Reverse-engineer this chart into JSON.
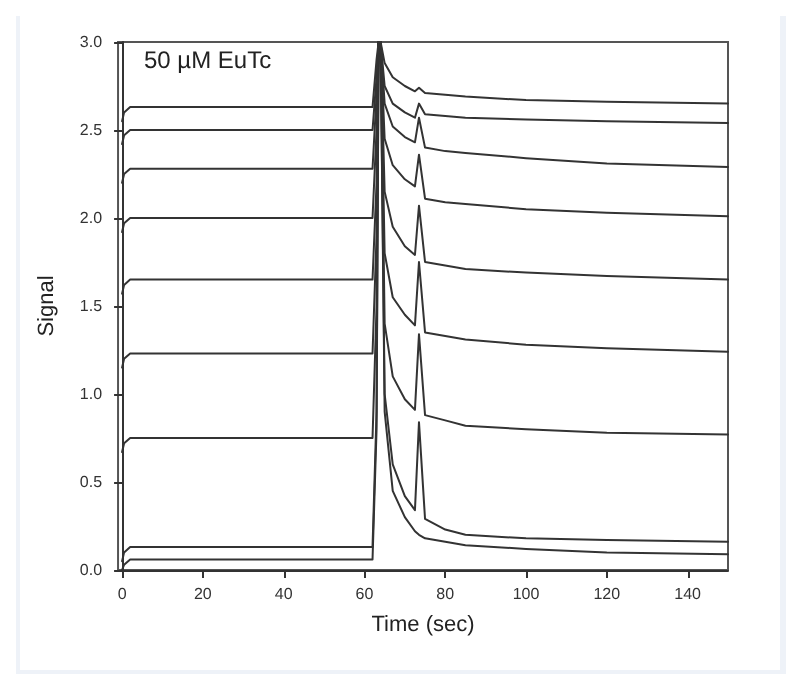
{
  "chart_data": {
    "type": "line",
    "xlabel": "Time (sec)",
    "ylabel": "Signal",
    "annotations": [
      "50 µM EuTc"
    ],
    "xlim": [
      -1,
      150
    ],
    "ylim": [
      0,
      3
    ],
    "xticks": [
      0,
      20,
      40,
      60,
      80,
      100,
      120,
      140
    ],
    "yticks": [
      {
        "value": 0,
        "label": "0.0"
      },
      {
        "value": 0.5,
        "label": "0.5"
      },
      {
        "value": 1,
        "label": "1.0"
      },
      {
        "value": 1.5,
        "label": "1.5"
      },
      {
        "value": 2,
        "label": "2.0"
      },
      {
        "value": 2.5,
        "label": "2.5"
      },
      {
        "value": 3,
        "label": "3.0"
      }
    ],
    "grid": false,
    "marker": "none",
    "line_style": "solid",
    "x": [
      0,
      0.5,
      2,
      62,
      63,
      63.5,
      64,
      65,
      67,
      70,
      72.5,
      73.5,
      75,
      80,
      85,
      100,
      120,
      150
    ],
    "series": [
      {
        "color": "#333333",
        "values": [
          0,
          0.03,
          0.06,
          0.06,
          0.8,
          3,
          3,
          0.9,
          0.45,
          0.3,
          0.22,
          0.2,
          0.18,
          0.16,
          0.14,
          0.12,
          0.1,
          0.09
        ]
      },
      {
        "color": "#333333",
        "values": [
          0.05,
          0.1,
          0.13,
          0.13,
          0.9,
          3,
          3,
          1.0,
          0.6,
          0.42,
          0.34,
          0.84,
          0.29,
          0.23,
          0.2,
          0.18,
          0.17,
          0.16
        ]
      },
      {
        "color": "#333333",
        "values": [
          0.67,
          0.72,
          0.75,
          0.75,
          1.5,
          3,
          3,
          1.4,
          1.1,
          0.97,
          0.91,
          1.34,
          0.88,
          0.85,
          0.82,
          0.8,
          0.78,
          0.77
        ]
      },
      {
        "color": "#333333",
        "values": [
          1.15,
          1.2,
          1.23,
          1.23,
          1.9,
          3,
          3,
          1.8,
          1.55,
          1.45,
          1.39,
          1.75,
          1.35,
          1.33,
          1.31,
          1.28,
          1.26,
          1.24
        ]
      },
      {
        "color": "#333333",
        "values": [
          1.57,
          1.62,
          1.65,
          1.65,
          2.2,
          3,
          3,
          2.15,
          1.95,
          1.84,
          1.79,
          2.07,
          1.75,
          1.73,
          1.71,
          1.69,
          1.67,
          1.65
        ]
      },
      {
        "color": "#333333",
        "values": [
          1.92,
          1.97,
          2.0,
          2.0,
          2.5,
          3,
          3,
          2.45,
          2.3,
          2.22,
          2.18,
          2.36,
          2.11,
          2.09,
          2.08,
          2.05,
          2.03,
          2.01
        ]
      },
      {
        "color": "#333333",
        "values": [
          2.2,
          2.25,
          2.28,
          2.28,
          2.7,
          3,
          3,
          2.65,
          2.52,
          2.46,
          2.43,
          2.57,
          2.4,
          2.38,
          2.37,
          2.34,
          2.31,
          2.29
        ]
      },
      {
        "color": "#333333",
        "values": [
          2.42,
          2.47,
          2.5,
          2.5,
          2.8,
          3,
          3,
          2.75,
          2.65,
          2.6,
          2.57,
          2.65,
          2.59,
          2.58,
          2.57,
          2.56,
          2.55,
          2.54
        ]
      },
      {
        "color": "#333333",
        "values": [
          2.55,
          2.6,
          2.63,
          2.63,
          2.9,
          3,
          3,
          2.88,
          2.8,
          2.75,
          2.72,
          2.74,
          2.71,
          2.7,
          2.69,
          2.67,
          2.66,
          2.65
        ]
      }
    ]
  }
}
